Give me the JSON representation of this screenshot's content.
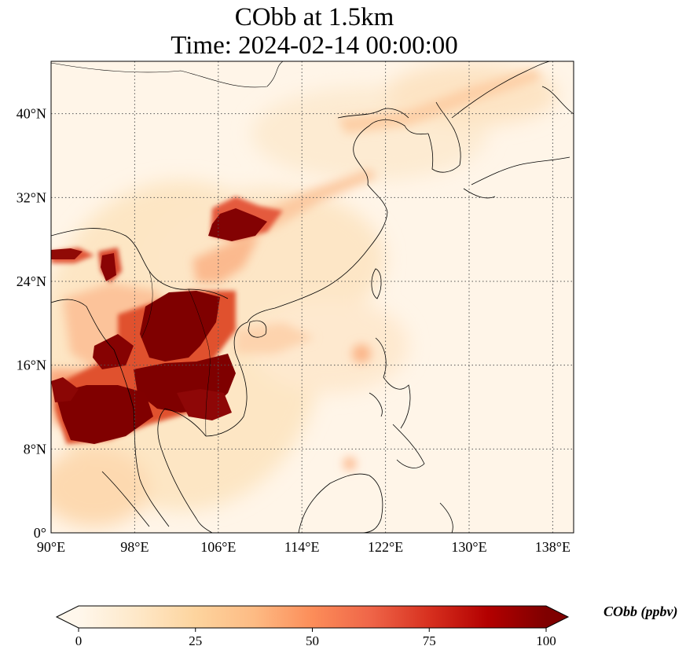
{
  "title": {
    "line1": "CObb at 1.5km",
    "line2": "Time: 2024-02-14 00:00:00"
  },
  "map": {
    "projection": "PlateCarree",
    "lon_range": [
      90,
      140
    ],
    "lat_range": [
      0,
      45
    ],
    "gridlines": "dotted",
    "lon_ticks": [
      {
        "value": 90,
        "label": "90°E"
      },
      {
        "value": 98,
        "label": "98°E"
      },
      {
        "value": 106,
        "label": "106°E"
      },
      {
        "value": 114,
        "label": "114°E"
      },
      {
        "value": 122,
        "label": "122°E"
      },
      {
        "value": 130,
        "label": "130°E"
      },
      {
        "value": 138,
        "label": "138°E"
      }
    ],
    "lat_ticks": [
      {
        "value": 0,
        "label": "0°"
      },
      {
        "value": 8,
        "label": "8°N"
      },
      {
        "value": 16,
        "label": "16°N"
      },
      {
        "value": 24,
        "label": "24°N"
      },
      {
        "value": 32,
        "label": "32°N"
      },
      {
        "value": 40,
        "label": "40°N"
      }
    ]
  },
  "colorbar": {
    "label": "CObb (ppbv)",
    "colormap": "OrRd",
    "range": [
      0,
      100
    ],
    "extend": "both",
    "colors": [
      "#fff7ec",
      "#fee8c8",
      "#fdd49e",
      "#fdbb84",
      "#fc8d59",
      "#ef6548",
      "#d7301f",
      "#b30000",
      "#7f0000"
    ],
    "ticks": [
      {
        "value": 0,
        "label": "0"
      },
      {
        "value": 25,
        "label": "25"
      },
      {
        "value": 50,
        "label": "50"
      },
      {
        "value": 75,
        "label": "75"
      },
      {
        "value": 100,
        "label": "100"
      }
    ]
  }
}
